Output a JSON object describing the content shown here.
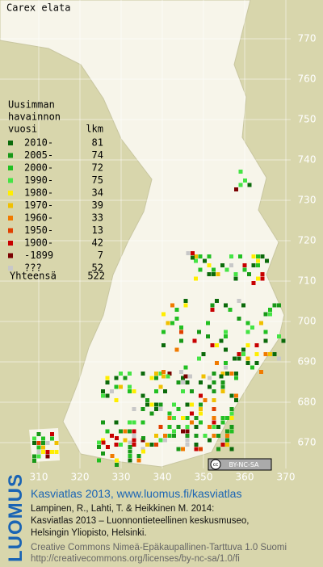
{
  "title": "Carex elata",
  "legend": {
    "heading": [
      "Uusimman",
      "havainnon"
    ],
    "col_headers": [
      "vuosi",
      "lkm"
    ],
    "rows": [
      {
        "label": "2010-",
        "count": 81,
        "color": "#0b6a0b"
      },
      {
        "label": "2005-",
        "count": 74,
        "color": "#189818"
      },
      {
        "label": "2000-",
        "count": 72,
        "color": "#22c022"
      },
      {
        "label": "1990-",
        "count": 75,
        "color": "#44e444"
      },
      {
        "label": "1980-",
        "count": 34,
        "color": "#ffee00"
      },
      {
        "label": "1970-",
        "count": 39,
        "color": "#f0c000"
      },
      {
        "label": "1960-",
        "count": 33,
        "color": "#f07a00"
      },
      {
        "label": "1950-",
        "count": 13,
        "color": "#e04000"
      },
      {
        "label": "1900-",
        "count": 42,
        "color": "#c80000"
      },
      {
        "label": "-1899",
        "count": 7,
        "color": "#7a0000"
      },
      {
        "label": "???",
        "count": 52,
        "color": "#c8c8c8"
      }
    ],
    "total": {
      "label": "Yhteensä",
      "count": 522
    }
  },
  "grid": {
    "y_labels": [
      "770",
      "760",
      "750",
      "740",
      "730",
      "720",
      "710",
      "700",
      "690",
      "680",
      "670"
    ],
    "x_labels": [
      "310",
      "320",
      "330",
      "340",
      "350",
      "360",
      "370"
    ]
  },
  "badge": "BY-NC-SA",
  "footer": {
    "brand": "LUOMUS",
    "link": "Kasviatlas 2013, www.luomus.fi/kasviatlas",
    "citation": [
      "Lampinen, R., Lahti, T. & Heikkinen M. 2014:",
      "Kasviatlas 2013 – Luonnontieteellinen keskusmuseo,",
      "Helsingin Yliopisto, Helsinki."
    ],
    "license": [
      "Creative Commons Nimeä-Epäkaupallinen-Tarttuva 1.0 Suomi",
      "http://creativecommons.org/licenses/by-nc-sa/1.0/fi"
    ]
  }
}
